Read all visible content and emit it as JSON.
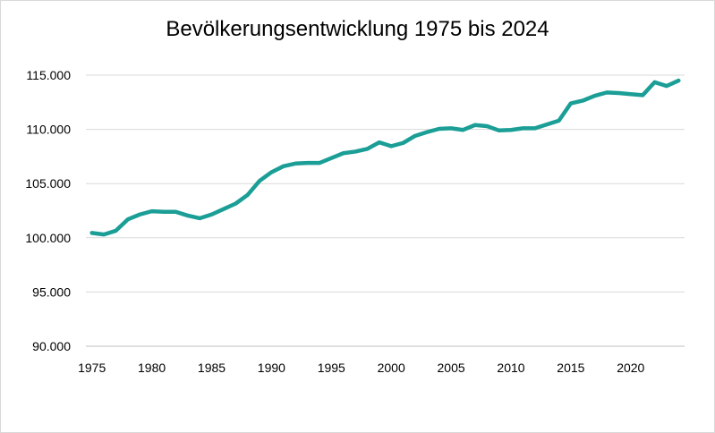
{
  "chart_data": {
    "type": "line",
    "title": "Bevölkerungsentwicklung 1975 bis 2024",
    "xlabel": "",
    "ylabel": "",
    "xlim": [
      1975,
      2024
    ],
    "ylim": [
      90000,
      115000
    ],
    "y_ticks": [
      90000,
      95000,
      100000,
      105000,
      110000,
      115000
    ],
    "y_tick_labels": [
      "90.000",
      "95.000",
      "100.000",
      "105.000",
      "110.000",
      "115.000"
    ],
    "x_ticks": [
      1975,
      1980,
      1985,
      1990,
      1995,
      2000,
      2005,
      2010,
      2015,
      2020
    ],
    "x_tick_labels": [
      "1975",
      "1980",
      "1985",
      "1990",
      "1995",
      "2000",
      "2005",
      "2010",
      "2015",
      "2020"
    ],
    "grid": "horizontal",
    "legend": "none",
    "series": [
      {
        "color": "#1a9e96",
        "x": [
          1975,
          1976,
          1977,
          1978,
          1979,
          1980,
          1981,
          1982,
          1983,
          1984,
          1985,
          1986,
          1987,
          1988,
          1989,
          1990,
          1991,
          1992,
          1993,
          1994,
          1995,
          1996,
          1997,
          1998,
          1999,
          2000,
          2001,
          2002,
          2003,
          2004,
          2005,
          2006,
          2007,
          2008,
          2009,
          2010,
          2011,
          2012,
          2013,
          2014,
          2015,
          2016,
          2017,
          2018,
          2019,
          2020,
          2021,
          2022,
          2023,
          2024
        ],
        "values": [
          100450,
          100300,
          100650,
          101700,
          102150,
          102450,
          102400,
          102400,
          102050,
          101800,
          102150,
          102650,
          103150,
          103950,
          105250,
          106050,
          106600,
          106850,
          106900,
          106900,
          107350,
          107800,
          107950,
          108200,
          108800,
          108450,
          108750,
          109400,
          109750,
          110050,
          110100,
          109950,
          110400,
          110300,
          109900,
          109950,
          110100,
          110100,
          110450,
          110800,
          112400,
          112650,
          113100,
          113400,
          113350,
          113250,
          113150,
          114350,
          114000,
          114500
        ]
      }
    ]
  }
}
